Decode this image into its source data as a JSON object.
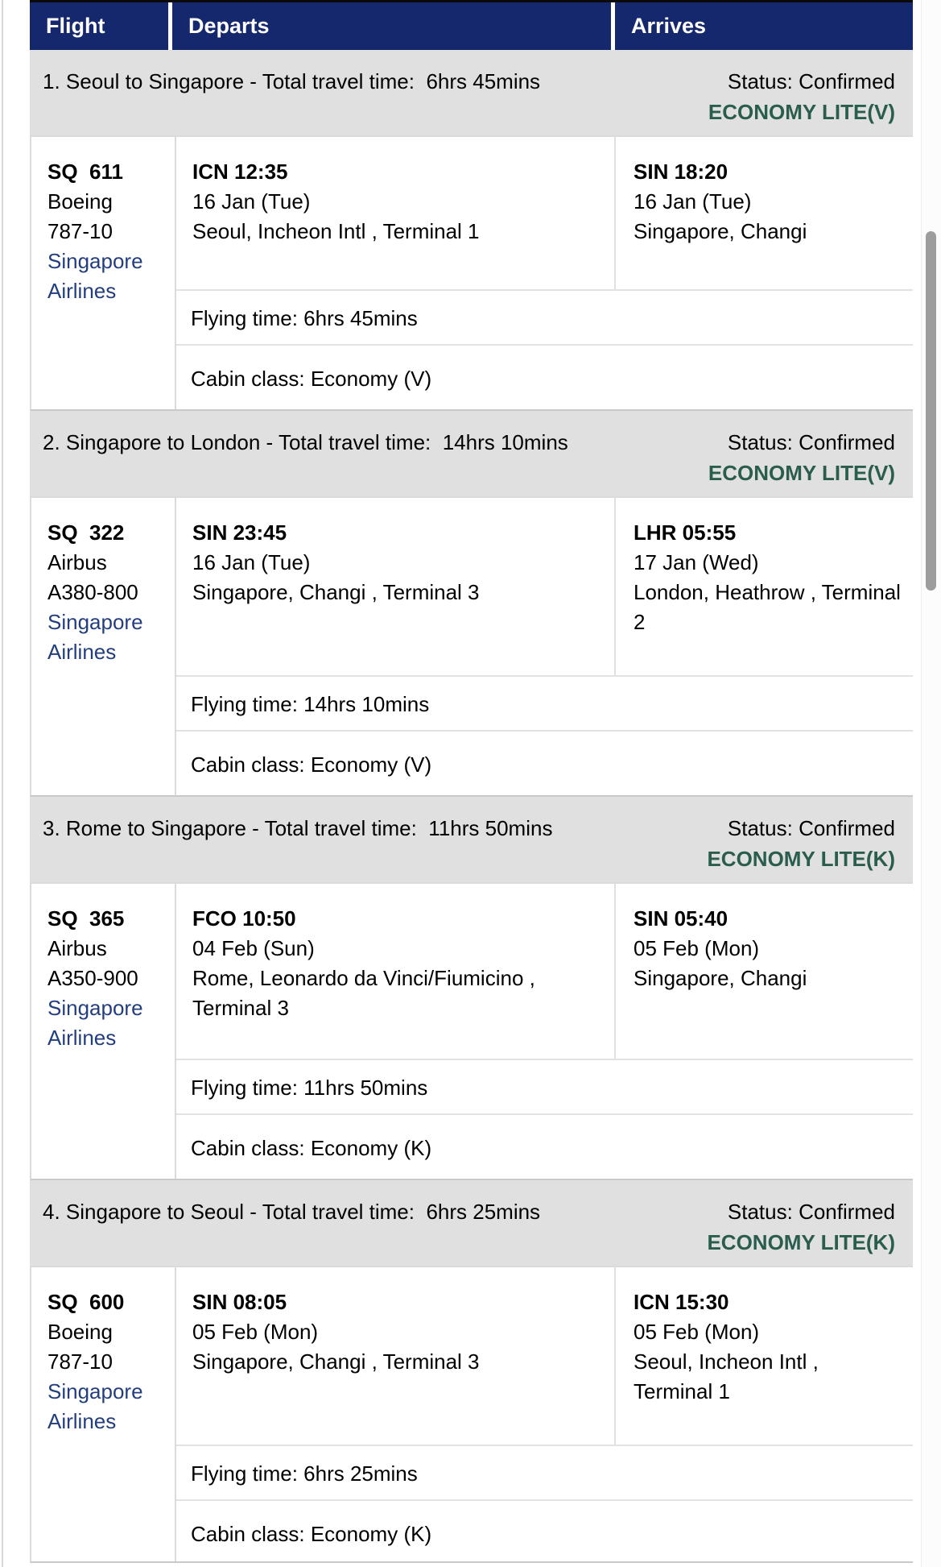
{
  "colors": {
    "header_bg": "#15286D",
    "section_bg": "#E0E0E0",
    "fare_green": "#2A5D4E",
    "link_blue": "#233E7F",
    "scrollbar_thumb": "#9D9D9D"
  },
  "table": {
    "columns": [
      "Flight",
      "Departs",
      "Arrives"
    ]
  },
  "sections": [
    {
      "title": "1. Seoul to Singapore - Total travel time:  6hrs 45mins",
      "status": "Status: Confirmed",
      "fare": "ECONOMY LITE(V)",
      "flight": {
        "number": "SQ  611",
        "aircraft": "Boeing 787-10",
        "airline": "Singapore Airlines",
        "depart": {
          "code_time": "ICN 12:35",
          "date": "16 Jan (Tue)",
          "airport": "Seoul, Incheon Intl , Terminal 1"
        },
        "arrive": {
          "code_time": "SIN 18:20",
          "date": "16 Jan (Tue)",
          "airport": "Singapore, Changi"
        },
        "flying_time": "Flying time: 6hrs 45mins",
        "cabin_class": "Cabin class: Economy (V)"
      }
    },
    {
      "title": "2. Singapore to London - Total travel time:  14hrs 10mins",
      "status": "Status: Confirmed",
      "fare": "ECONOMY LITE(V)",
      "flight": {
        "number": "SQ  322",
        "aircraft": "Airbus A380-800",
        "airline": "Singapore Airlines",
        "depart": {
          "code_time": "SIN 23:45",
          "date": "16 Jan (Tue)",
          "airport": "Singapore, Changi , Terminal 3"
        },
        "arrive": {
          "code_time": "LHR 05:55",
          "date": "17 Jan (Wed)",
          "airport": "London, Heathrow , Terminal\n2"
        },
        "flying_time": "Flying time: 14hrs 10mins",
        "cabin_class": "Cabin class: Economy (V)"
      }
    },
    {
      "title": "3. Rome to Singapore - Total travel time:  11hrs 50mins",
      "status": "Status: Confirmed",
      "fare": "ECONOMY LITE(K)",
      "flight": {
        "number": "SQ  365",
        "aircraft": "Airbus A350-900",
        "airline": "Singapore Airlines",
        "depart": {
          "code_time": "FCO 10:50",
          "date": "04 Feb (Sun)",
          "airport": "Rome, Leonardo da Vinci/Fiumicino ,\nTerminal 3"
        },
        "arrive": {
          "code_time": "SIN 05:40",
          "date": "05 Feb (Mon)",
          "airport": "Singapore, Changi"
        },
        "flying_time": "Flying time: 11hrs 50mins",
        "cabin_class": "Cabin class: Economy (K)"
      }
    },
    {
      "title": "4. Singapore to Seoul - Total travel time:  6hrs 25mins",
      "status": "Status: Confirmed",
      "fare": "ECONOMY LITE(K)",
      "flight": {
        "number": "SQ  600",
        "aircraft": "Boeing 787-10",
        "airline": "Singapore Airlines",
        "depart": {
          "code_time": "SIN 08:05",
          "date": "05 Feb (Mon)",
          "airport": "Singapore, Changi , Terminal 3"
        },
        "arrive": {
          "code_time": "ICN 15:30",
          "date": "05 Feb (Mon)",
          "airport": "Seoul, Incheon Intl ,\nTerminal 1"
        },
        "flying_time": "Flying time: 6hrs 25mins",
        "cabin_class": "Cabin class: Economy (K)"
      }
    }
  ]
}
